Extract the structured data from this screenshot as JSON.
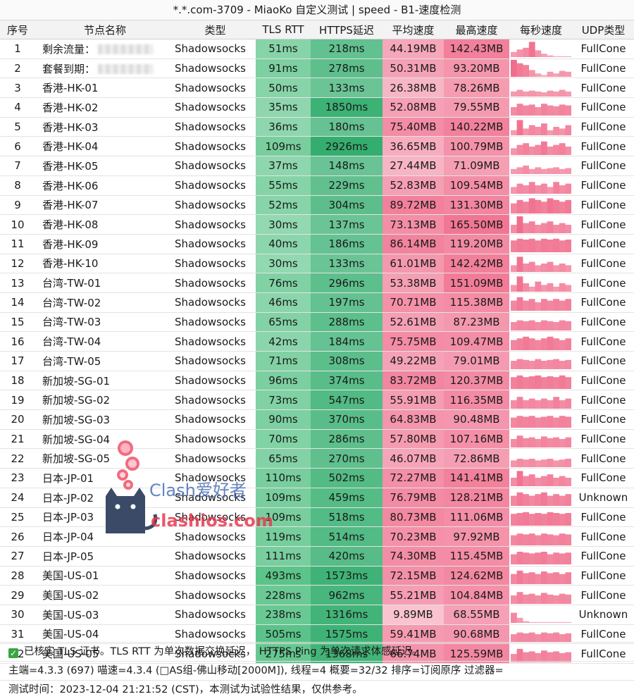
{
  "title": "*.*.com-3709 - MiaoKo 自定义测试 | speed - B1-速度检测",
  "columns": [
    "序号",
    "节点名称",
    "类型",
    "TLS RTT",
    "HTTPS延迟",
    "平均速度",
    "最高速度",
    "每秒速度",
    "UDP类型"
  ],
  "colors": {
    "rtt_accent": "#1fae5e",
    "https_accent": "#10a055",
    "speed_accent": "#f06d8c",
    "spark_bar": "#f06d8c"
  },
  "rows": [
    {
      "id": "1",
      "name": "剩余流量：",
      "redacted": true,
      "type": "Shadowsocks",
      "rtt": "51ms",
      "https": "218ms",
      "avg": "44.19MB",
      "max": "142.43MB",
      "udp": "FullCone",
      "spark": [
        0.3,
        0.45,
        0.55,
        0.9,
        0.4,
        0.2,
        0.1,
        0.05,
        0.05,
        0.05
      ]
    },
    {
      "id": "2",
      "name": "套餐到期：",
      "redacted": true,
      "type": "Shadowsocks",
      "rtt": "91ms",
      "https": "278ms",
      "avg": "50.31MB",
      "max": "93.20MB",
      "udp": "FullCone",
      "spark": [
        1.0,
        0.8,
        0.7,
        0.4,
        0.2,
        0.1,
        0.3,
        0.2,
        0.35,
        0.3
      ]
    },
    {
      "id": "3",
      "name": "香港-HK-01",
      "type": "Shadowsocks",
      "rtt": "50ms",
      "https": "133ms",
      "avg": "26.38MB",
      "max": "78.26MB",
      "udp": "FullCone",
      "spark": [
        0.3,
        0.4,
        0.3,
        0.35,
        0.3,
        0.25,
        0.35,
        0.3,
        0.4,
        0.3
      ]
    },
    {
      "id": "4",
      "name": "香港-HK-02",
      "type": "Shadowsocks",
      "rtt": "35ms",
      "https": "1850ms",
      "avg": "52.08MB",
      "max": "79.55MB",
      "udp": "FullCone",
      "spark": [
        0.5,
        0.7,
        0.6,
        0.65,
        0.5,
        0.7,
        0.6,
        0.55,
        0.65,
        0.6
      ]
    },
    {
      "id": "5",
      "name": "香港-HK-03",
      "type": "Shadowsocks",
      "rtt": "36ms",
      "https": "180ms",
      "avg": "75.40MB",
      "max": "140.22MB",
      "udp": "FullCone",
      "spark": [
        0.3,
        0.9,
        0.4,
        0.6,
        0.5,
        0.7,
        0.3,
        0.5,
        0.4,
        0.6
      ]
    },
    {
      "id": "6",
      "name": "香港-HK-04",
      "type": "Shadowsocks",
      "rtt": "109ms",
      "https": "2926ms",
      "avg": "36.65MB",
      "max": "100.79MB",
      "udp": "FullCone",
      "spark": [
        0.4,
        0.6,
        0.7,
        0.5,
        0.6,
        0.8,
        0.5,
        0.6,
        0.7,
        0.5
      ]
    },
    {
      "id": "7",
      "name": "香港-HK-05",
      "type": "Shadowsocks",
      "rtt": "37ms",
      "https": "148ms",
      "avg": "27.44MB",
      "max": "71.09MB",
      "udp": "FullCone",
      "spark": [
        0.3,
        0.4,
        0.5,
        0.3,
        0.4,
        0.3,
        0.35,
        0.4,
        0.3,
        0.35
      ]
    },
    {
      "id": "8",
      "name": "香港-HK-06",
      "type": "Shadowsocks",
      "rtt": "55ms",
      "https": "229ms",
      "avg": "52.83MB",
      "max": "109.54MB",
      "udp": "FullCone",
      "spark": [
        0.4,
        0.6,
        0.5,
        0.7,
        0.5,
        0.6,
        0.4,
        0.7,
        0.5,
        0.6
      ]
    },
    {
      "id": "9",
      "name": "香港-HK-07",
      "type": "Shadowsocks",
      "rtt": "52ms",
      "https": "304ms",
      "avg": "89.72MB",
      "max": "131.30MB",
      "udp": "FullCone",
      "spark": [
        0.6,
        0.8,
        0.7,
        0.9,
        0.8,
        0.7,
        0.9,
        0.8,
        0.7,
        0.8
      ]
    },
    {
      "id": "10",
      "name": "香港-HK-08",
      "type": "Shadowsocks",
      "rtt": "30ms",
      "https": "137ms",
      "avg": "73.13MB",
      "max": "165.50MB",
      "udp": "FullCone",
      "spark": [
        0.5,
        1.0,
        0.6,
        0.7,
        0.5,
        0.6,
        0.7,
        0.5,
        0.6,
        0.5
      ]
    },
    {
      "id": "11",
      "name": "香港-HK-09",
      "type": "Shadowsocks",
      "rtt": "40ms",
      "https": "186ms",
      "avg": "86.14MB",
      "max": "119.20MB",
      "udp": "FullCone",
      "spark": [
        0.7,
        0.8,
        0.75,
        0.8,
        0.7,
        0.8,
        0.75,
        0.8,
        0.7,
        0.75
      ]
    },
    {
      "id": "12",
      "name": "香港-HK-10",
      "type": "Shadowsocks",
      "rtt": "30ms",
      "https": "133ms",
      "avg": "61.01MB",
      "max": "142.42MB",
      "udp": "FullCone",
      "spark": [
        0.4,
        0.9,
        0.5,
        0.6,
        0.4,
        0.5,
        0.6,
        0.4,
        0.5,
        0.4
      ]
    },
    {
      "id": "13",
      "name": "台湾-TW-01",
      "type": "Shadowsocks",
      "rtt": "76ms",
      "https": "296ms",
      "avg": "53.38MB",
      "max": "151.09MB",
      "udp": "FullCone",
      "spark": [
        0.4,
        0.9,
        0.5,
        0.3,
        0.6,
        0.4,
        0.5,
        0.3,
        0.5,
        0.4
      ]
    },
    {
      "id": "14",
      "name": "台湾-TW-02",
      "type": "Shadowsocks",
      "rtt": "46ms",
      "https": "197ms",
      "avg": "70.71MB",
      "max": "115.38MB",
      "udp": "FullCone",
      "spark": [
        0.6,
        0.8,
        0.6,
        0.7,
        0.5,
        0.7,
        0.6,
        0.7,
        0.6,
        0.7
      ]
    },
    {
      "id": "15",
      "name": "台湾-TW-03",
      "type": "Shadowsocks",
      "rtt": "65ms",
      "https": "288ms",
      "avg": "52.61MB",
      "max": "87.23MB",
      "udp": "FullCone",
      "spark": [
        0.5,
        0.6,
        0.55,
        0.6,
        0.5,
        0.6,
        0.55,
        0.5,
        0.6,
        0.55
      ]
    },
    {
      "id": "16",
      "name": "台湾-TW-04",
      "type": "Shadowsocks",
      "rtt": "42ms",
      "https": "184ms",
      "avg": "75.75MB",
      "max": "109.47MB",
      "udp": "FullCone",
      "spark": [
        0.6,
        0.7,
        0.8,
        0.7,
        0.6,
        0.7,
        0.8,
        0.7,
        0.6,
        0.7
      ]
    },
    {
      "id": "17",
      "name": "台湾-TW-05",
      "type": "Shadowsocks",
      "rtt": "71ms",
      "https": "308ms",
      "avg": "49.22MB",
      "max": "79.01MB",
      "udp": "FullCone",
      "spark": [
        0.5,
        0.6,
        0.55,
        0.5,
        0.6,
        0.5,
        0.55,
        0.6,
        0.5,
        0.55
      ]
    },
    {
      "id": "18",
      "name": "新加坡-SG-01",
      "type": "Shadowsocks",
      "rtt": "96ms",
      "https": "374ms",
      "avg": "83.72MB",
      "max": "120.37MB",
      "udp": "FullCone",
      "spark": [
        0.7,
        0.8,
        0.7,
        0.75,
        0.8,
        0.7,
        0.75,
        0.7,
        0.8,
        0.7
      ]
    },
    {
      "id": "19",
      "name": "新加坡-SG-02",
      "type": "Shadowsocks",
      "rtt": "73ms",
      "https": "547ms",
      "avg": "55.91MB",
      "max": "116.35MB",
      "udp": "FullCone",
      "spark": [
        0.5,
        0.7,
        0.5,
        0.6,
        0.5,
        0.6,
        0.5,
        0.7,
        0.5,
        0.6
      ]
    },
    {
      "id": "20",
      "name": "新加坡-SG-03",
      "type": "Shadowsocks",
      "rtt": "90ms",
      "https": "370ms",
      "avg": "64.83MB",
      "max": "90.48MB",
      "udp": "FullCone",
      "spark": [
        0.6,
        0.7,
        0.65,
        0.7,
        0.6,
        0.65,
        0.7,
        0.6,
        0.7,
        0.65
      ]
    },
    {
      "id": "21",
      "name": "新加坡-SG-04",
      "type": "Shadowsocks",
      "rtt": "70ms",
      "https": "286ms",
      "avg": "57.80MB",
      "max": "107.16MB",
      "udp": "FullCone",
      "spark": [
        0.5,
        0.7,
        0.55,
        0.6,
        0.5,
        0.65,
        0.55,
        0.6,
        0.5,
        0.6
      ]
    },
    {
      "id": "22",
      "name": "新加坡-SG-05",
      "type": "Shadowsocks",
      "rtt": "65ms",
      "https": "270ms",
      "avg": "46.07MB",
      "max": "72.86MB",
      "udp": "FullCone",
      "spark": [
        0.4,
        0.5,
        0.45,
        0.5,
        0.4,
        0.45,
        0.5,
        0.4,
        0.45,
        0.5
      ]
    },
    {
      "id": "23",
      "name": "日本-JP-01",
      "type": "Shadowsocks",
      "rtt": "110ms",
      "https": "502ms",
      "avg": "72.27MB",
      "max": "141.41MB",
      "udp": "FullCone",
      "spark": [
        0.5,
        0.9,
        0.6,
        0.7,
        0.5,
        0.6,
        0.7,
        0.5,
        0.6,
        0.5
      ]
    },
    {
      "id": "24",
      "name": "日本-JP-02",
      "type": "Shadowsocks",
      "rtt": "109ms",
      "https": "459ms",
      "avg": "76.79MB",
      "max": "128.21MB",
      "udp": "Unknown",
      "spark": [
        0.6,
        0.8,
        0.7,
        0.6,
        0.7,
        0.8,
        0.6,
        0.7,
        0.6,
        0.7
      ]
    },
    {
      "id": "25",
      "name": "日本-JP-03",
      "type": "Shadowsocks",
      "rtt": "109ms",
      "https": "518ms",
      "avg": "80.73MB",
      "max": "111.06MB",
      "udp": "FullCone",
      "spark": [
        0.7,
        0.75,
        0.8,
        0.7,
        0.75,
        0.7,
        0.8,
        0.75,
        0.7,
        0.75
      ]
    },
    {
      "id": "26",
      "name": "日本-JP-04",
      "type": "Shadowsocks",
      "rtt": "119ms",
      "https": "514ms",
      "avg": "70.23MB",
      "max": "97.92MB",
      "udp": "FullCone",
      "spark": [
        0.6,
        0.7,
        0.65,
        0.7,
        0.6,
        0.7,
        0.65,
        0.6,
        0.7,
        0.65
      ]
    },
    {
      "id": "27",
      "name": "日本-JP-05",
      "type": "Shadowsocks",
      "rtt": "111ms",
      "https": "420ms",
      "avg": "74.30MB",
      "max": "115.45MB",
      "udp": "FullCone",
      "spark": [
        0.6,
        0.75,
        0.7,
        0.65,
        0.7,
        0.75,
        0.6,
        0.7,
        0.65,
        0.7
      ]
    },
    {
      "id": "28",
      "name": "美国-US-01",
      "type": "Shadowsocks",
      "rtt": "493ms",
      "https": "1573ms",
      "avg": "72.15MB",
      "max": "124.62MB",
      "udp": "FullCone",
      "spark": [
        0.6,
        0.8,
        0.65,
        0.7,
        0.6,
        0.75,
        0.65,
        0.7,
        0.6,
        0.7
      ]
    },
    {
      "id": "29",
      "name": "美国-US-02",
      "type": "Shadowsocks",
      "rtt": "228ms",
      "https": "962ms",
      "avg": "55.21MB",
      "max": "104.84MB",
      "udp": "FullCone",
      "spark": [
        0.5,
        0.7,
        0.55,
        0.6,
        0.5,
        0.65,
        0.55,
        0.5,
        0.6,
        0.55
      ]
    },
    {
      "id": "30",
      "name": "美国-US-03",
      "type": "Shadowsocks",
      "rtt": "238ms",
      "https": "1316ms",
      "avg": "9.89MB",
      "max": "68.55MB",
      "udp": "Unknown",
      "spark": [
        0.6,
        0.3,
        0.1,
        0.05,
        0.05,
        0.05,
        0.05,
        0.05,
        0.05,
        0.05
      ]
    },
    {
      "id": "31",
      "name": "美国-US-04",
      "type": "Shadowsocks",
      "rtt": "505ms",
      "https": "1575ms",
      "avg": "59.41MB",
      "max": "90.68MB",
      "udp": "FullCone",
      "spark": [
        0.5,
        0.6,
        0.55,
        0.6,
        0.5,
        0.6,
        0.55,
        0.6,
        0.5,
        0.55
      ]
    },
    {
      "id": "32",
      "name": "美国-US-05",
      "type": "Shadowsocks",
      "rtt": "275ms",
      "https": "1368ms",
      "avg": "66.74MB",
      "max": "125.59MB",
      "udp": "FullCone",
      "spark": [
        0.5,
        0.8,
        0.6,
        0.65,
        0.55,
        0.7,
        0.6,
        0.65,
        0.55,
        0.6
      ]
    }
  ],
  "footer": {
    "line1": "已核实 TLS 证书。TLS RTT 为单次数据交换延迟， HTTPS Ping 为单次请求体感延迟。",
    "line2": "主端=4.3.3 (697) 喵速=4.3.4 (□AS组-佛山移动[2000M]), 线程=4 概要=32/32 排序=订阅原序 过滤器=",
    "line3": "测试时间：2023-12-04 21:21:52 (CST)，本测试为试验性结果，仅供参考。"
  },
  "watermark": {
    "line1": "Clash爱好者",
    "line2": "clashios.com"
  }
}
